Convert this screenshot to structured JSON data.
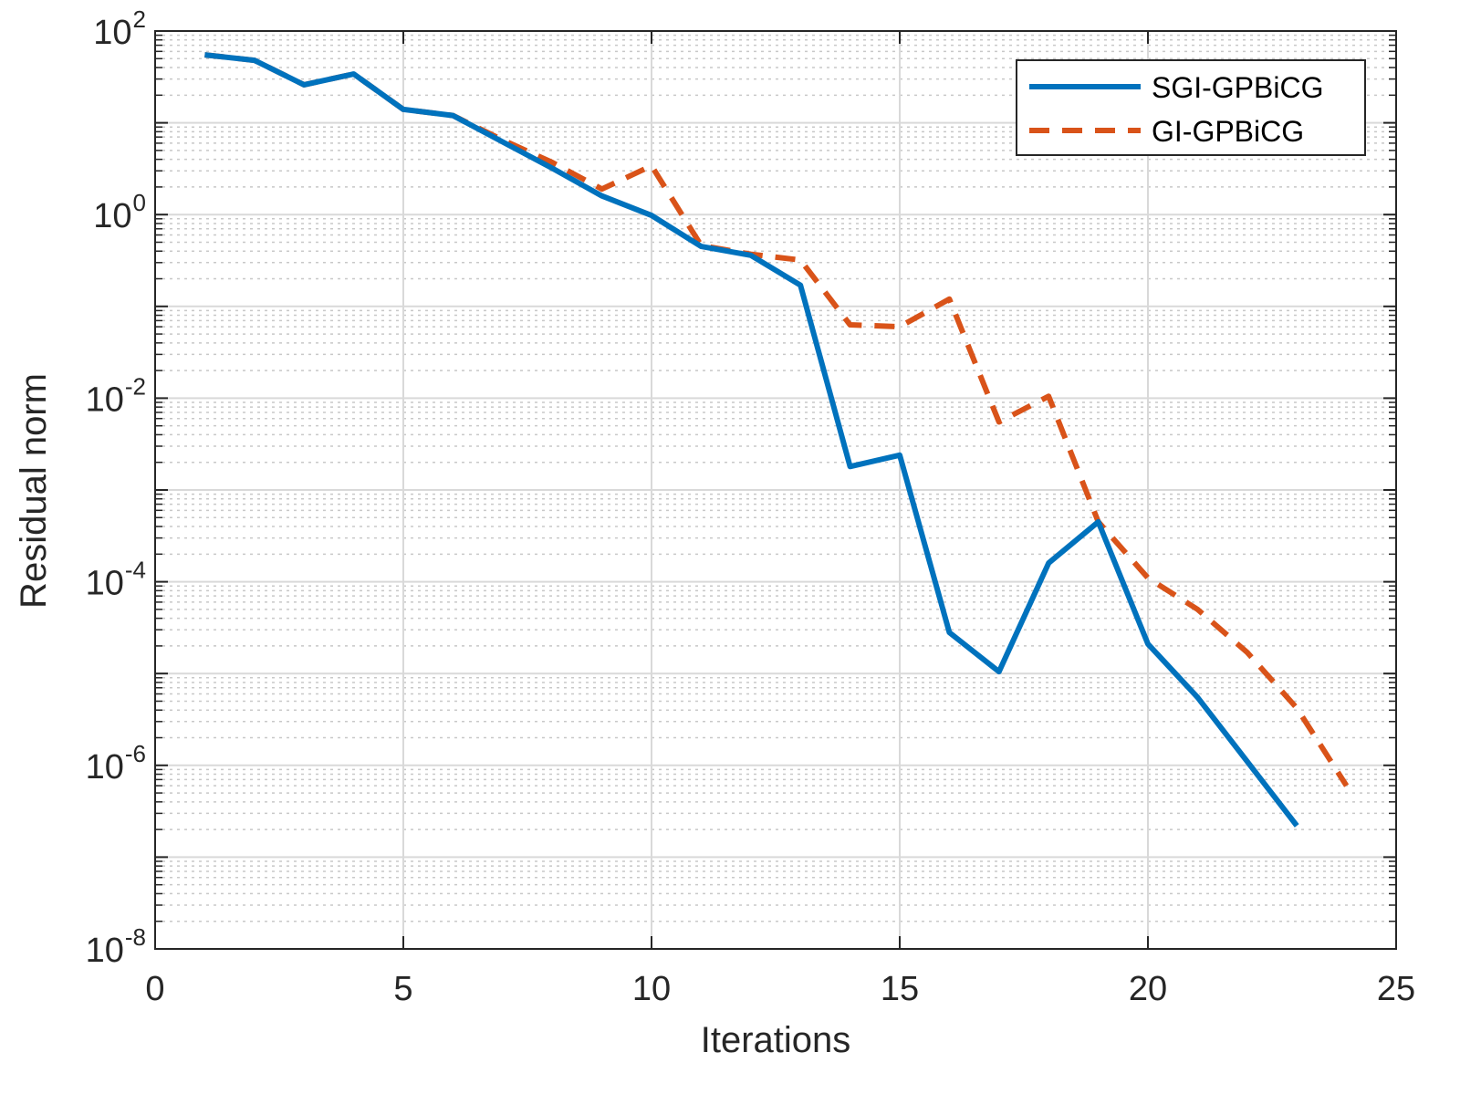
{
  "chart_data": {
    "type": "line",
    "xlabel": "Iterations",
    "ylabel": "Residual norm",
    "xlim": [
      0,
      25
    ],
    "ylim": [
      1e-08,
      100
    ],
    "yscale": "log",
    "grid": true,
    "minor_grid": true,
    "legend_position": "top-right",
    "xticks": [
      "0",
      "5",
      "10",
      "15",
      "20",
      "25"
    ],
    "yticks": [
      {
        "base": "10",
        "exp": "2"
      },
      {
        "base": "10",
        "exp": "0"
      },
      {
        "base": "10",
        "exp": "-2"
      },
      {
        "base": "10",
        "exp": "-4"
      },
      {
        "base": "10",
        "exp": "-6"
      },
      {
        "base": "10",
        "exp": "-8"
      }
    ],
    "series": [
      {
        "name": "SGI-GPBiCG",
        "color": "#0072BD",
        "style": "solid",
        "x": [
          1,
          2,
          3,
          4,
          5,
          6,
          7,
          8,
          9,
          10,
          11,
          12,
          13,
          14,
          15,
          16,
          17,
          18,
          19,
          20,
          21,
          22,
          23
        ],
        "y": [
          55,
          48,
          26,
          34,
          14,
          12,
          6.2,
          3.2,
          1.6,
          0.98,
          0.45,
          0.36,
          0.17,
          0.0018,
          0.0024,
          2.8e-05,
          1.05e-05,
          0.00016,
          0.00045,
          2.1e-05,
          5.5e-06,
          1.1e-06,
          2.2e-07
        ]
      },
      {
        "name": "GI-GPBiCG",
        "color": "#D95319",
        "style": "dashed",
        "x": [
          1,
          2,
          3,
          4,
          5,
          6,
          7,
          8,
          9,
          10,
          11,
          12,
          13,
          14,
          15,
          16,
          17,
          18,
          19,
          20,
          21,
          22,
          23,
          24
        ],
        "y": [
          55,
          48,
          26,
          34,
          14,
          12,
          6.5,
          3.7,
          1.9,
          3.4,
          0.46,
          0.37,
          0.32,
          0.063,
          0.06,
          0.12,
          0.0055,
          0.0105,
          0.00045,
          0.00011,
          5e-05,
          1.7e-05,
          4.2e-06,
          6e-07
        ]
      }
    ]
  }
}
